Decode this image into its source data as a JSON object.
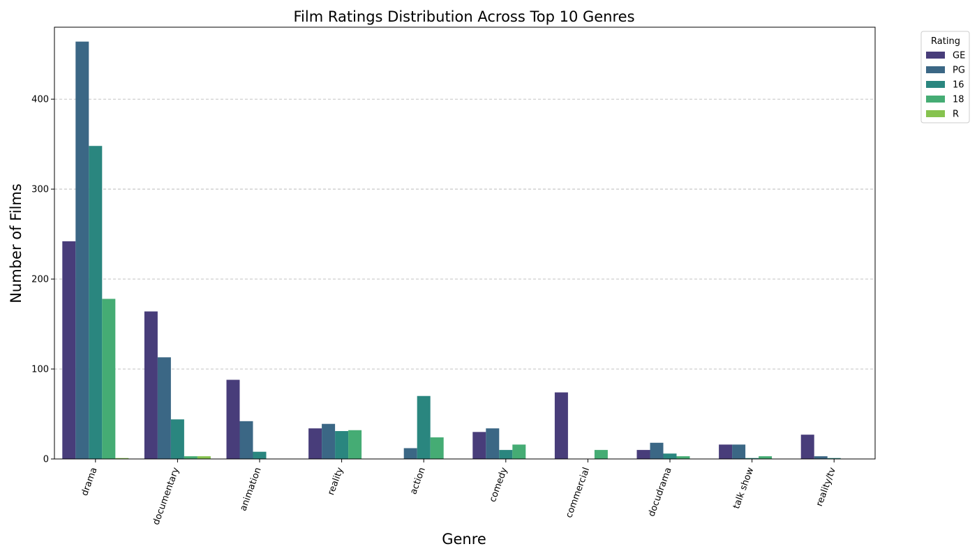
{
  "chart_data": {
    "type": "bar",
    "title": "Film Ratings Distribution Across Top 10 Genres",
    "xlabel": "Genre",
    "ylabel": "Number of Films",
    "ylim": [
      0,
      480
    ],
    "yticks": [
      0,
      100,
      200,
      300,
      400
    ],
    "grid": "y-dashed",
    "categories": [
      "drama",
      "documentary",
      "animation",
      "reality",
      "action",
      "comedy",
      "commercial",
      "docudrama",
      "talk show",
      "reality/tv"
    ],
    "series": [
      {
        "name": "GE",
        "color": "#483d7a",
        "values": [
          242,
          164,
          88,
          34,
          0,
          30,
          74,
          10,
          16,
          27
        ]
      },
      {
        "name": "PG",
        "color": "#3b6785",
        "values": [
          464,
          113,
          42,
          39,
          12,
          34,
          0,
          18,
          16,
          3
        ]
      },
      {
        "name": "16",
        "color": "#2a867f",
        "values": [
          348,
          44,
          8,
          31,
          70,
          10,
          0,
          6,
          1,
          1
        ]
      },
      {
        "name": "18",
        "color": "#45ac74",
        "values": [
          178,
          3,
          0,
          32,
          24,
          16,
          10,
          3,
          3,
          0
        ]
      },
      {
        "name": "R",
        "color": "#86c34f",
        "values": [
          1,
          3,
          0,
          0,
          0,
          0,
          0,
          0,
          0,
          0
        ]
      }
    ],
    "legend": {
      "title": "Rating",
      "position": "outside-top-right"
    }
  }
}
